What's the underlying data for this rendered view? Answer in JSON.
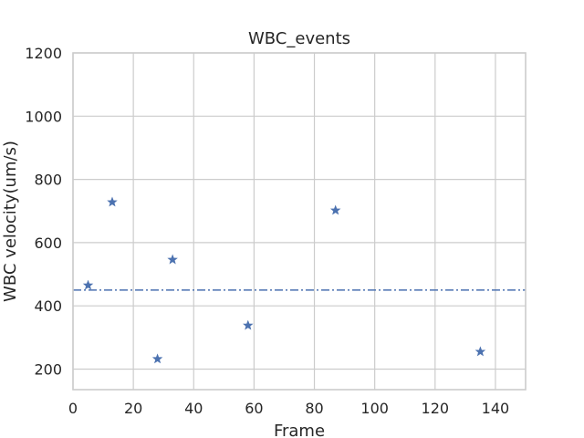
{
  "chart_data": {
    "type": "scatter",
    "title": "WBC_events",
    "xlabel": "Frame",
    "ylabel": "WBC velocity(um/s)",
    "xlim": [
      0,
      150
    ],
    "ylim": [
      135,
      1200
    ],
    "xticks": [
      0,
      20,
      40,
      60,
      80,
      100,
      120,
      140
    ],
    "yticks": [
      200,
      400,
      600,
      800,
      1000,
      1200
    ],
    "grid": true,
    "marker": "star",
    "marker_color": "#4c72b0",
    "series": [
      {
        "points": [
          {
            "x": 5,
            "y": 465
          },
          {
            "x": 13,
            "y": 728
          },
          {
            "x": 28,
            "y": 232
          },
          {
            "x": 33,
            "y": 546
          },
          {
            "x": 58,
            "y": 338
          },
          {
            "x": 87,
            "y": 702
          },
          {
            "x": 135,
            "y": 255
          }
        ]
      }
    ],
    "reference_line": {
      "y": 450,
      "style": "dash-dot",
      "color": "#4c72b0"
    }
  }
}
